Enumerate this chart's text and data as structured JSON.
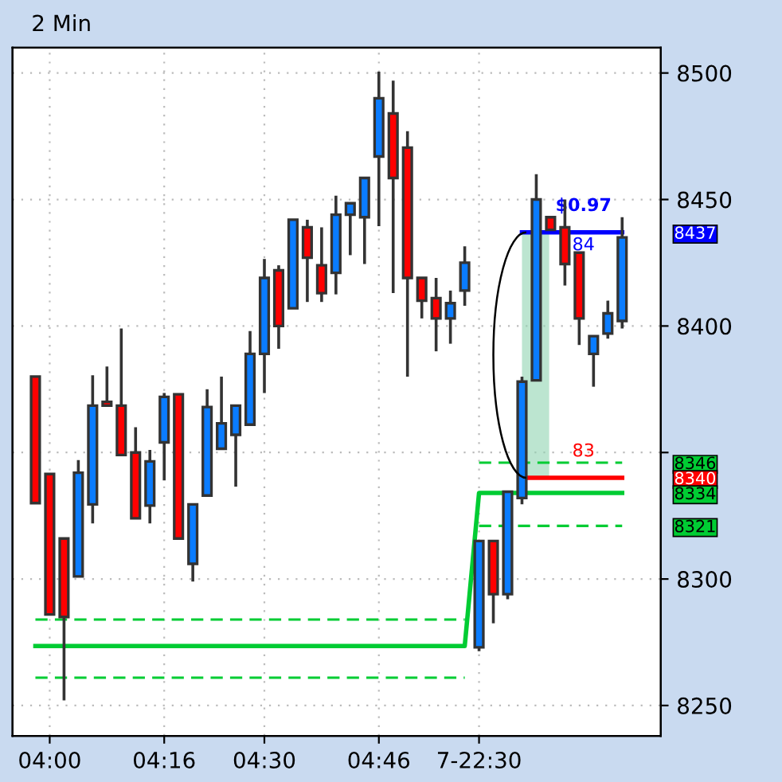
{
  "chart_data": {
    "type": "candlestick",
    "title": "2 Min",
    "categories": [
      null,
      "04:00",
      null,
      null,
      null,
      null,
      null,
      null,
      null,
      "04:16",
      null,
      null,
      null,
      null,
      null,
      null,
      "04:30",
      null,
      null,
      null,
      null,
      null,
      null,
      null,
      "04:46",
      null,
      null,
      null,
      null,
      null,
      null,
      "7-22:30",
      null,
      null,
      null,
      null,
      null,
      null,
      null,
      null,
      null,
      null
    ],
    "ohlc": [
      [
        8380,
        8380,
        8330,
        8330
      ],
      [
        8341.5,
        8341.5,
        8286,
        8286
      ],
      [
        8316,
        8316,
        8252,
        8285
      ],
      [
        8301,
        8347,
        8301,
        8342
      ],
      [
        8329.5,
        8380.5,
        8322,
        8368.5
      ],
      [
        8370,
        8384,
        8368.5,
        8368.5
      ],
      [
        8368.5,
        8399,
        8349,
        8349
      ],
      [
        8350,
        8360,
        8324,
        8324
      ],
      [
        8329,
        8351,
        8322,
        8346.5
      ],
      [
        8354,
        8373.5,
        8339,
        8372
      ],
      [
        8373,
        8373,
        8316,
        8316
      ],
      [
        8306,
        8329.5,
        8299,
        8329.5
      ],
      [
        8333,
        8375,
        8333,
        8368
      ],
      [
        8351.5,
        8380,
        8351.5,
        8361.5
      ],
      [
        8357,
        8368.5,
        8336.5,
        8368.5
      ],
      [
        8361,
        8398,
        8361,
        8389
      ],
      [
        8389,
        8426.5,
        8373.5,
        8419
      ],
      [
        8422,
        8424,
        8391,
        8400
      ],
      [
        8407,
        8442,
        8407,
        8442
      ],
      [
        8439,
        8442,
        8409.5,
        8427
      ],
      [
        8424,
        8439,
        8409.5,
        8413
      ],
      [
        8421,
        8451.5,
        8412.5,
        8444
      ],
      [
        8444,
        8448.5,
        8428,
        8448.5
      ],
      [
        8443,
        8458.5,
        8424.5,
        8458.5
      ],
      [
        8467,
        8500.5,
        8439.5,
        8490
      ],
      [
        8484,
        8497,
        8413,
        8458.5
      ],
      [
        8470.5,
        8477,
        8380,
        8419
      ],
      [
        8419,
        8419,
        8403,
        8410
      ],
      [
        8411,
        8419,
        8390,
        8403
      ],
      [
        8403,
        8414,
        8393,
        8409
      ],
      [
        8414,
        8431.5,
        8408,
        8425
      ],
      [
        8273,
        8315,
        8271.5,
        8315
      ],
      [
        8315,
        8315,
        8282.5,
        8294
      ],
      [
        8294,
        8334.5,
        8292,
        8334.5
      ],
      [
        8332,
        8380,
        8329.5,
        8378
      ],
      [
        8378.5,
        8460,
        8378.5,
        8450
      ],
      [
        8443,
        8443,
        8438,
        8438
      ],
      [
        8439,
        8450,
        8416,
        8424.5
      ],
      [
        8429,
        8429,
        8392.5,
        8403
      ],
      [
        8389,
        8396,
        8376,
        8396
      ],
      [
        8397,
        8410,
        8395,
        8405
      ],
      [
        8402,
        8443,
        8399,
        8435
      ]
    ],
    "colors": [
      "#ff0000",
      "#ff0000",
      "#ff0000",
      "#0a7cff",
      "#0a7cff",
      "#ff0000",
      "#ff0000",
      "#ff0000",
      "#0a7cff",
      "#0a7cff",
      "#ff0000",
      "#0a7cff",
      "#0a7cff",
      "#0a7cff",
      "#0a7cff",
      "#0a7cff",
      "#0a7cff",
      "#ff0000",
      "#0a7cff",
      "#ff0000",
      "#ff0000",
      "#0a7cff",
      "#0a7cff",
      "#0a7cff",
      "#0a7cff",
      "#ff0000",
      "#ff0000",
      "#ff0000",
      "#ff0000",
      "#0a7cff",
      "#0a7cff",
      "#0a7cff",
      "#ff0000",
      "#0a7cff",
      "#0a7cff",
      "#0a7cff",
      "#ff0000",
      "#ff0000",
      "#ff0000",
      "#0a7cff",
      "#0a7cff",
      "#0a7cff"
    ],
    "series": [
      {
        "type": "line",
        "color": "#00cc33",
        "line_style": "solid",
        "values": [
          8273.5,
          8273.5,
          8273.5,
          8273.5,
          8273.5,
          8273.5,
          8273.5,
          8273.5,
          8273.5,
          8273.5,
          8273.5,
          8273.5,
          8273.5,
          8273.5,
          8273.5,
          8273.5,
          8273.5,
          8273.5,
          8273.5,
          8273.5,
          8273.5,
          8273.5,
          8273.5,
          8273.5,
          8273.5,
          8273.5,
          8273.5,
          8273.5,
          8273.5,
          8273.5,
          8273.5,
          8334,
          8334,
          8334,
          8334,
          8334,
          8334,
          8334,
          8334,
          8334,
          8334,
          8334
        ]
      },
      {
        "type": "line",
        "color": "#00cc33",
        "line_style": "dashed",
        "values": [
          8284,
          8284,
          8284,
          8284,
          8284,
          8284,
          8284,
          8284,
          8284,
          8284,
          8284,
          8284,
          8284,
          8284,
          8284,
          8284,
          8284,
          8284,
          8284,
          8284,
          8284,
          8284,
          8284,
          8284,
          8284,
          8284,
          8284,
          8284,
          8284,
          8284,
          8284,
          null,
          null,
          null,
          null,
          null,
          null,
          null,
          null,
          null,
          null,
          null
        ]
      },
      {
        "type": "line",
        "color": "#00cc33",
        "line_style": "dashed",
        "values": [
          8261,
          8261,
          8261,
          8261,
          8261,
          8261,
          8261,
          8261,
          8261,
          8261,
          8261,
          8261,
          8261,
          8261,
          8261,
          8261,
          8261,
          8261,
          8261,
          8261,
          8261,
          8261,
          8261,
          8261,
          8261,
          8261,
          8261,
          8261,
          8261,
          8261,
          8261,
          null,
          null,
          null,
          null,
          null,
          null,
          null,
          null,
          null,
          null,
          null
        ]
      },
      {
        "type": "line",
        "color": "#00cc33",
        "line_style": "dashed",
        "values": [
          null,
          null,
          null,
          null,
          null,
          null,
          null,
          null,
          null,
          null,
          null,
          null,
          null,
          null,
          null,
          null,
          null,
          null,
          null,
          null,
          null,
          null,
          null,
          null,
          null,
          null,
          null,
          null,
          null,
          null,
          null,
          8346,
          8346,
          8346,
          8346,
          8346,
          8346,
          8346,
          8346,
          8346,
          8346,
          8346
        ]
      },
      {
        "type": "line",
        "color": "#00cc33",
        "line_style": "dashed",
        "values": [
          null,
          null,
          null,
          null,
          null,
          null,
          null,
          null,
          null,
          null,
          null,
          null,
          null,
          null,
          null,
          null,
          null,
          null,
          null,
          null,
          null,
          null,
          null,
          null,
          null,
          null,
          null,
          null,
          null,
          null,
          null,
          8321,
          8321,
          8321,
          8321,
          8321,
          8321,
          8321,
          8321,
          8321,
          8321,
          8321
        ]
      },
      {
        "type": "line",
        "color": "#ff0000",
        "line_style": "solid",
        "values": [
          null,
          null,
          null,
          null,
          null,
          null,
          null,
          null,
          null,
          null,
          null,
          null,
          null,
          null,
          null,
          null,
          null,
          null,
          null,
          null,
          null,
          null,
          null,
          null,
          null,
          null,
          null,
          null,
          null,
          null,
          null,
          null,
          null,
          null,
          8340,
          8340,
          8340,
          8340,
          8340,
          8340,
          8340,
          8340
        ]
      },
      {
        "type": "line",
        "color": "#0000ff",
        "line_style": "solid",
        "values": [
          null,
          null,
          null,
          null,
          null,
          null,
          null,
          null,
          null,
          null,
          null,
          null,
          null,
          null,
          null,
          null,
          null,
          null,
          null,
          null,
          null,
          null,
          null,
          null,
          null,
          null,
          null,
          null,
          null,
          null,
          null,
          null,
          null,
          null,
          8437,
          8437,
          8437,
          8437,
          8437,
          8437,
          8437,
          8437
        ]
      }
    ],
    "annotations": [
      {
        "text": "$0.97",
        "y": 8437
      },
      {
        "text": "84",
        "y": 8437
      },
      {
        "text": "83",
        "y": 8340
      }
    ],
    "ylim": [
      8238,
      8510
    ],
    "yticks": [
      8250,
      8300,
      {
        "value": 8350,
        "label": null
      },
      8400,
      8450,
      8500
    ],
    "y2lim": [
      8238,
      8510
    ],
    "y2ticks": [
      8437,
      8346,
      8340,
      8334,
      8321
    ],
    "grid": true
  }
}
